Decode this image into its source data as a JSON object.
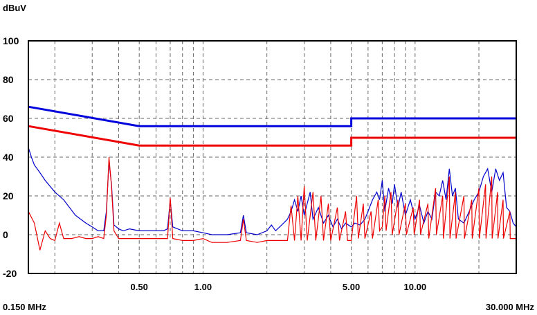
{
  "chart_data": {
    "type": "line",
    "ylabel": "dBuV",
    "ylim": [
      -20,
      100
    ],
    "y_ticks": [
      "100",
      "80",
      "60",
      "40",
      "20",
      "0",
      "-20"
    ],
    "y_tick_values": [
      100,
      80,
      60,
      40,
      20,
      0,
      -20
    ],
    "x_scale": "log",
    "xlim_mhz": [
      0.15,
      30
    ],
    "x_ticks": [
      {
        "label": "0.50",
        "value": 0.5
      },
      {
        "label": "1.00",
        "value": 1.0
      },
      {
        "label": "5.00",
        "value": 5.0
      },
      {
        "label": "10.00",
        "value": 10.0
      }
    ],
    "x_start_label": "0.150 MHz",
    "x_end_label": "30.000 MHz",
    "grid": true,
    "limit_lines": [
      {
        "color": "#0000dd",
        "points": [
          [
            0.15,
            66
          ],
          [
            0.5,
            56
          ],
          [
            5,
            56
          ],
          [
            5,
            60
          ],
          [
            30,
            60
          ]
        ]
      },
      {
        "color": "#ee0000",
        "points": [
          [
            0.15,
            56
          ],
          [
            0.5,
            46
          ],
          [
            5,
            46
          ],
          [
            5,
            50
          ],
          [
            30,
            50
          ]
        ]
      }
    ],
    "series": [
      {
        "color": "#0000cc",
        "points": [
          [
            0.15,
            45
          ],
          [
            0.155,
            40
          ],
          [
            0.16,
            36
          ],
          [
            0.17,
            32
          ],
          [
            0.18,
            28
          ],
          [
            0.2,
            22
          ],
          [
            0.22,
            18
          ],
          [
            0.25,
            10
          ],
          [
            0.28,
            6
          ],
          [
            0.3,
            4
          ],
          [
            0.32,
            2
          ],
          [
            0.34,
            2
          ],
          [
            0.35,
            12
          ],
          [
            0.36,
            38
          ],
          [
            0.37,
            26
          ],
          [
            0.38,
            5
          ],
          [
            0.4,
            3
          ],
          [
            0.42,
            2
          ],
          [
            0.45,
            3
          ],
          [
            0.5,
            2
          ],
          [
            0.55,
            2
          ],
          [
            0.6,
            2
          ],
          [
            0.65,
            2
          ],
          [
            0.68,
            3
          ],
          [
            0.7,
            18
          ],
          [
            0.72,
            4
          ],
          [
            0.8,
            2
          ],
          [
            0.9,
            2
          ],
          [
            1.0,
            1
          ],
          [
            1.1,
            0
          ],
          [
            1.3,
            0
          ],
          [
            1.5,
            1
          ],
          [
            1.55,
            10
          ],
          [
            1.6,
            1
          ],
          [
            1.8,
            0
          ],
          [
            2.0,
            2
          ],
          [
            2.1,
            5
          ],
          [
            2.2,
            2
          ],
          [
            2.4,
            6
          ],
          [
            2.5,
            8
          ],
          [
            2.6,
            12
          ],
          [
            2.7,
            18
          ],
          [
            2.8,
            12
          ],
          [
            2.9,
            20
          ],
          [
            3.0,
            10
          ],
          [
            3.2,
            22
          ],
          [
            3.3,
            8
          ],
          [
            3.5,
            14
          ],
          [
            3.7,
            6
          ],
          [
            3.9,
            10
          ],
          [
            4.1,
            4
          ],
          [
            4.3,
            8
          ],
          [
            4.5,
            3
          ],
          [
            4.7,
            6
          ],
          [
            5.0,
            4
          ],
          [
            5.2,
            6
          ],
          [
            5.5,
            5
          ],
          [
            5.8,
            8
          ],
          [
            6.0,
            12
          ],
          [
            6.3,
            18
          ],
          [
            6.6,
            22
          ],
          [
            6.8,
            18
          ],
          [
            7.0,
            28
          ],
          [
            7.2,
            12
          ],
          [
            7.5,
            24
          ],
          [
            7.8,
            16
          ],
          [
            8.0,
            26
          ],
          [
            8.3,
            14
          ],
          [
            8.6,
            22
          ],
          [
            9.0,
            10
          ],
          [
            9.5,
            18
          ],
          [
            10,
            8
          ],
          [
            10.5,
            15
          ],
          [
            11,
            6
          ],
          [
            11.5,
            12
          ],
          [
            12,
            8
          ],
          [
            12.5,
            22
          ],
          [
            13,
            20
          ],
          [
            13.5,
            28
          ],
          [
            14,
            18
          ],
          [
            14.5,
            34
          ],
          [
            15,
            20
          ],
          [
            15.5,
            24
          ],
          [
            16,
            8
          ],
          [
            17,
            6
          ],
          [
            18,
            12
          ],
          [
            19,
            18
          ],
          [
            20,
            22
          ],
          [
            21,
            30
          ],
          [
            22,
            34
          ],
          [
            23,
            22
          ],
          [
            24,
            34
          ],
          [
            25,
            28
          ],
          [
            26,
            32
          ],
          [
            27,
            14
          ],
          [
            28,
            12
          ],
          [
            29,
            6
          ],
          [
            30,
            4
          ]
        ]
      },
      {
        "color": "#ee0000",
        "points": [
          [
            0.15,
            12
          ],
          [
            0.16,
            6
          ],
          [
            0.17,
            -8
          ],
          [
            0.18,
            2
          ],
          [
            0.19,
            -2
          ],
          [
            0.2,
            -3
          ],
          [
            0.21,
            6
          ],
          [
            0.22,
            -2
          ],
          [
            0.24,
            -2
          ],
          [
            0.26,
            -1
          ],
          [
            0.28,
            -2
          ],
          [
            0.3,
            -2
          ],
          [
            0.32,
            -1
          ],
          [
            0.34,
            -2
          ],
          [
            0.35,
            10
          ],
          [
            0.36,
            40
          ],
          [
            0.37,
            25
          ],
          [
            0.38,
            2
          ],
          [
            0.4,
            -2
          ],
          [
            0.45,
            -2
          ],
          [
            0.5,
            -2
          ],
          [
            0.6,
            -2
          ],
          [
            0.65,
            -2
          ],
          [
            0.68,
            -2
          ],
          [
            0.7,
            19
          ],
          [
            0.72,
            -2
          ],
          [
            0.8,
            -3
          ],
          [
            0.9,
            -3
          ],
          [
            1.0,
            -2
          ],
          [
            1.1,
            -4
          ],
          [
            1.3,
            -4
          ],
          [
            1.5,
            -3
          ],
          [
            1.55,
            8
          ],
          [
            1.6,
            -3
          ],
          [
            1.8,
            -4
          ],
          [
            2.0,
            -3
          ],
          [
            2.2,
            -3
          ],
          [
            2.5,
            -3
          ],
          [
            2.6,
            15
          ],
          [
            2.7,
            -3
          ],
          [
            2.8,
            20
          ],
          [
            2.9,
            -3
          ],
          [
            3.0,
            25
          ],
          [
            3.1,
            -3
          ],
          [
            3.3,
            22
          ],
          [
            3.4,
            -3
          ],
          [
            3.6,
            20
          ],
          [
            3.7,
            -3
          ],
          [
            3.9,
            16
          ],
          [
            4.0,
            -3
          ],
          [
            4.3,
            14
          ],
          [
            4.4,
            -3
          ],
          [
            4.7,
            12
          ],
          [
            4.8,
            -3
          ],
          [
            5.0,
            -3
          ],
          [
            5.3,
            20
          ],
          [
            5.4,
            -2
          ],
          [
            5.7,
            16
          ],
          [
            5.8,
            -2
          ],
          [
            6.2,
            12
          ],
          [
            6.3,
            -2
          ],
          [
            6.7,
            18
          ],
          [
            6.8,
            2
          ],
          [
            7.0,
            4
          ],
          [
            7.2,
            20
          ],
          [
            7.3,
            2
          ],
          [
            7.7,
            22
          ],
          [
            7.8,
            0
          ],
          [
            8.3,
            18
          ],
          [
            8.4,
            0
          ],
          [
            9.0,
            16
          ],
          [
            9.1,
            0
          ],
          [
            9.8,
            14
          ],
          [
            9.9,
            0
          ],
          [
            10.5,
            18
          ],
          [
            10.6,
            0
          ],
          [
            11.5,
            16
          ],
          [
            11.6,
            -2
          ],
          [
            12.5,
            24
          ],
          [
            12.6,
            0
          ],
          [
            13.5,
            20
          ],
          [
            13.6,
            -2
          ],
          [
            14.5,
            30
          ],
          [
            14.6,
            -2
          ],
          [
            15.5,
            22
          ],
          [
            15.6,
            -2
          ],
          [
            17,
            20
          ],
          [
            17.1,
            -2
          ],
          [
            18.5,
            18
          ],
          [
            18.6,
            -2
          ],
          [
            20,
            24
          ],
          [
            20.1,
            -2
          ],
          [
            21.5,
            26
          ],
          [
            21.6,
            -2
          ],
          [
            23,
            30
          ],
          [
            23.1,
            -2
          ],
          [
            24.5,
            22
          ],
          [
            24.6,
            -2
          ],
          [
            26,
            18
          ],
          [
            26.1,
            -2
          ],
          [
            28,
            12
          ],
          [
            28.1,
            -2
          ],
          [
            30,
            -2
          ]
        ]
      }
    ]
  }
}
